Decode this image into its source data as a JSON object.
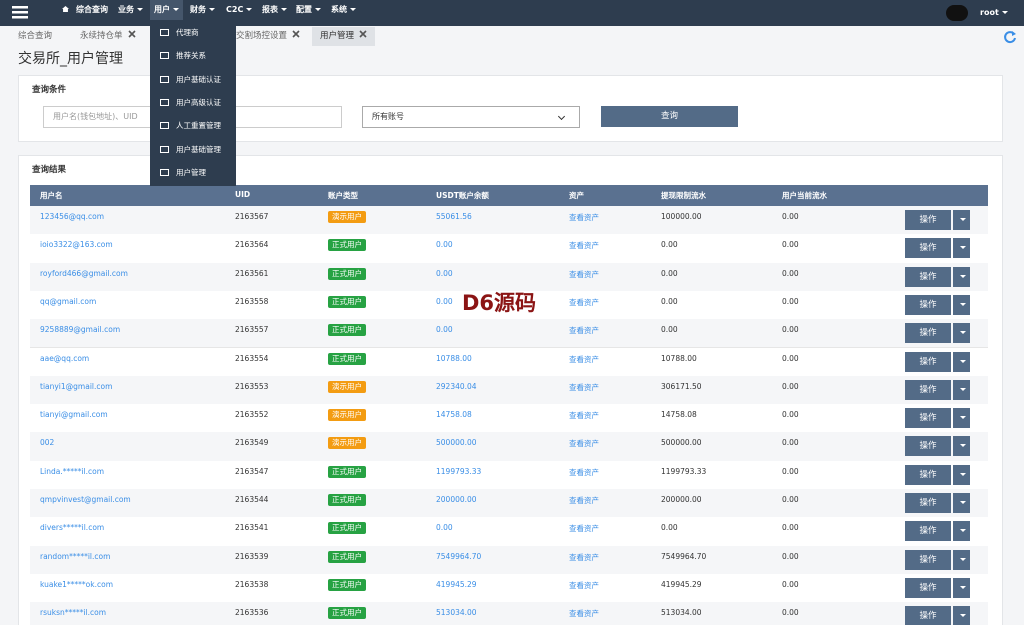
{
  "navbar": {
    "menu": [
      "综合查询",
      "业务",
      "用户",
      "财务",
      "C2C",
      "报表",
      "配置",
      "系统"
    ],
    "user": "root"
  },
  "tabs": [
    "综合查询",
    "永续持仓单",
    "交割场控设置",
    "用户管理"
  ],
  "page_title": "交易所_用户管理",
  "query": {
    "title": "查询条件",
    "placeholder": "用户名(钱包地址)、UID",
    "select": "所有账号",
    "button": "查询"
  },
  "results": {
    "title": "查询结果",
    "columns": [
      "用户名",
      "UID",
      "账户类型",
      "USDT账户余额",
      "资产",
      "提现限制流水",
      "用户当前流水"
    ],
    "rows": [
      {
        "user": "123456@qq.com",
        "uid": "2163567",
        "type": {
          "label": "演示用户",
          "color": "#f39c12"
        },
        "balance": "55061.56",
        "asset": "查看资产",
        "limit": "100000.00",
        "flow": "0.00",
        "action": "操作"
      },
      {
        "user": "ioio3322@163.com",
        "uid": "2163564",
        "type": {
          "label": "正式用户",
          "color": "#27a243"
        },
        "balance": "0.00",
        "asset": "查看资产",
        "limit": "0.00",
        "flow": "0.00",
        "action": "操作"
      },
      {
        "user": "royford466@gmail.com",
        "uid": "2163561",
        "type": {
          "label": "正式用户",
          "color": "#27a243"
        },
        "balance": "0.00",
        "asset": "查看资产",
        "limit": "0.00",
        "flow": "0.00",
        "action": "操作"
      },
      {
        "user": "qq@gmail.com",
        "uid": "2163558",
        "type": {
          "label": "正式用户",
          "color": "#27a243"
        },
        "balance": "0.00",
        "asset": "查看资产",
        "limit": "0.00",
        "flow": "0.00",
        "action": "操作"
      },
      {
        "user": "9258889@gmail.com",
        "uid": "2163557",
        "type": {
          "label": "正式用户",
          "color": "#27a243"
        },
        "balance": "0.00",
        "asset": "查看资产",
        "limit": "0.00",
        "flow": "0.00",
        "action": "操作"
      },
      {
        "user": "aae@qq.com",
        "uid": "2163554",
        "type": {
          "label": "正式用户",
          "color": "#27a243"
        },
        "balance": "10788.00",
        "asset": "查看资产",
        "limit": "10788.00",
        "flow": "0.00",
        "action": "操作"
      },
      {
        "user": "tianyi1@gmail.com",
        "uid": "2163553",
        "type": {
          "label": "演示用户",
          "color": "#f39c12"
        },
        "balance": "292340.04",
        "asset": "查看资产",
        "limit": "306171.50",
        "flow": "0.00",
        "action": "操作"
      },
      {
        "user": "tianyi@gmail.com",
        "uid": "2163552",
        "type": {
          "label": "演示用户",
          "color": "#f39c12"
        },
        "balance": "14758.08",
        "asset": "查看资产",
        "limit": "14758.08",
        "flow": "0.00",
        "action": "操作"
      },
      {
        "user": "002",
        "uid": "2163549",
        "type": {
          "label": "演示用户",
          "color": "#f39c12"
        },
        "balance": "500000.00",
        "asset": "查看资产",
        "limit": "500000.00",
        "flow": "0.00",
        "action": "操作"
      },
      {
        "user": "Linda.*****il.com",
        "uid": "2163547",
        "type": {
          "label": "正式用户",
          "color": "#27a243"
        },
        "balance": "1199793.33",
        "asset": "查看资产",
        "limit": "1199793.33",
        "flow": "0.00",
        "action": "操作"
      },
      {
        "user": "qmpvinvest@gmail.com",
        "uid": "2163544",
        "type": {
          "label": "正式用户",
          "color": "#27a243"
        },
        "balance": "200000.00",
        "asset": "查看资产",
        "limit": "200000.00",
        "flow": "0.00",
        "action": "操作"
      },
      {
        "user": "divers*****il.com",
        "uid": "2163541",
        "type": {
          "label": "正式用户",
          "color": "#27a243"
        },
        "balance": "0.00",
        "asset": "查看资产",
        "limit": "0.00",
        "flow": "0.00",
        "action": "操作"
      },
      {
        "user": "random*****il.com",
        "uid": "2163539",
        "type": {
          "label": "正式用户",
          "color": "#27a243"
        },
        "balance": "7549964.70",
        "asset": "查看资产",
        "limit": "7549964.70",
        "flow": "0.00",
        "action": "操作"
      },
      {
        "user": "kuake1*****ok.com",
        "uid": "2163538",
        "type": {
          "label": "正式用户",
          "color": "#27a243"
        },
        "balance": "419945.29",
        "asset": "查看资产",
        "limit": "419945.29",
        "flow": "0.00",
        "action": "操作"
      },
      {
        "user": "rsuksn*****il.com",
        "uid": "2163536",
        "type": {
          "label": "正式用户",
          "color": "#27a243"
        },
        "balance": "513034.00",
        "asset": "查看资产",
        "limit": "513034.00",
        "flow": "0.00",
        "action": "操作"
      }
    ]
  },
  "dropdown": [
    "代理商",
    "推荐关系",
    "用户基础认证",
    "用户高级认证",
    "人工重置管理",
    "用户基础管理",
    "用户管理"
  ],
  "watermark": "D6源码"
}
